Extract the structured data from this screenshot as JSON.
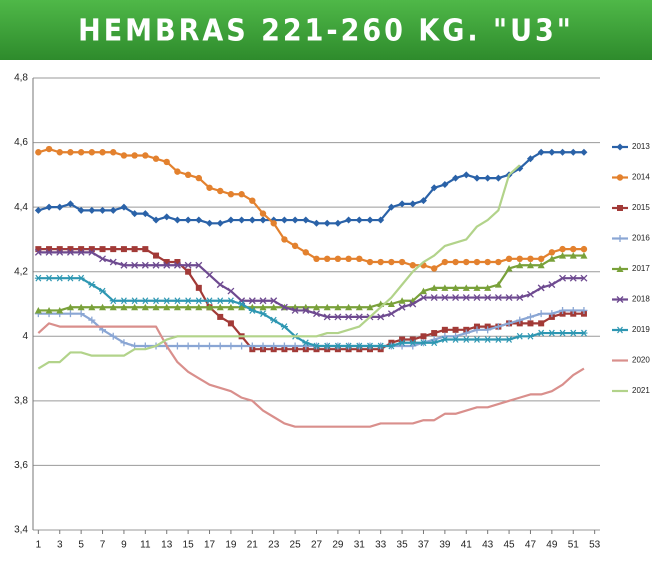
{
  "chart_data": {
    "type": "line",
    "title": "HEMBRAS 221-260 KG. \"U3\"",
    "x": [
      1,
      2,
      3,
      4,
      5,
      6,
      7,
      8,
      9,
      10,
      11,
      12,
      13,
      14,
      15,
      16,
      17,
      18,
      19,
      20,
      21,
      22,
      23,
      24,
      25,
      26,
      27,
      28,
      29,
      30,
      31,
      32,
      33,
      34,
      35,
      36,
      37,
      38,
      39,
      40,
      41,
      42,
      43,
      44,
      45,
      46,
      47,
      48,
      49,
      50,
      51,
      52
    ],
    "xlim": [
      0.5,
      53.5
    ],
    "xticks": [
      1,
      3,
      5,
      7,
      9,
      11,
      13,
      15,
      17,
      19,
      21,
      23,
      25,
      27,
      29,
      31,
      33,
      35,
      37,
      39,
      41,
      43,
      45,
      47,
      49,
      51,
      53
    ],
    "ylim": [
      3.4,
      4.8
    ],
    "yticks": [
      {
        "value": 3.4,
        "label": "3,4"
      },
      {
        "value": 3.6,
        "label": "3,6"
      },
      {
        "value": 3.8,
        "label": "3,8"
      },
      4,
      {
        "value": 4.2,
        "label": "4,2"
      },
      {
        "value": 4.4,
        "label": "4,4"
      },
      {
        "value": 4.6,
        "label": "4,6"
      },
      {
        "value": 4.8,
        "label": "4,8"
      }
    ],
    "grid": true,
    "legend": "right",
    "series": [
      {
        "name": "2013",
        "color": "#2a62a8",
        "marker": "diamond",
        "values": [
          4.39,
          4.4,
          4.4,
          4.41,
          4.39,
          4.39,
          4.39,
          4.39,
          4.4,
          4.38,
          4.38,
          4.36,
          4.37,
          4.36,
          4.36,
          4.36,
          4.35,
          4.35,
          4.36,
          4.36,
          4.36,
          4.36,
          4.36,
          4.36,
          4.36,
          4.36,
          4.35,
          4.35,
          4.35,
          4.36,
          4.36,
          4.36,
          4.36,
          4.4,
          4.41,
          4.41,
          4.42,
          4.46,
          4.47,
          4.49,
          4.5,
          4.49,
          4.49,
          4.49,
          4.5,
          4.52,
          4.55,
          4.57,
          4.57,
          4.57,
          4.57,
          4.57
        ]
      },
      {
        "name": "2014",
        "color": "#e3812e",
        "marker": "circle",
        "values": [
          4.57,
          4.58,
          4.57,
          4.57,
          4.57,
          4.57,
          4.57,
          4.57,
          4.56,
          4.56,
          4.56,
          4.55,
          4.54,
          4.51,
          4.5,
          4.49,
          4.46,
          4.45,
          4.44,
          4.44,
          4.42,
          4.38,
          4.35,
          4.3,
          4.28,
          4.26,
          4.24,
          4.24,
          4.24,
          4.24,
          4.24,
          4.23,
          4.23,
          4.23,
          4.23,
          4.22,
          4.22,
          4.21,
          4.23,
          4.23,
          4.23,
          4.23,
          4.23,
          4.23,
          4.24,
          4.24,
          4.24,
          4.24,
          4.26,
          4.27,
          4.27,
          4.27
        ]
      },
      {
        "name": "2015",
        "color": "#a23a37",
        "marker": "square",
        "values": [
          4.27,
          4.27,
          4.27,
          4.27,
          4.27,
          4.27,
          4.27,
          4.27,
          4.27,
          4.27,
          4.27,
          4.25,
          4.23,
          4.23,
          4.2,
          4.15,
          4.09,
          4.06,
          4.04,
          4.0,
          3.96,
          3.96,
          3.96,
          3.96,
          3.96,
          3.96,
          3.96,
          3.96,
          3.96,
          3.96,
          3.96,
          3.96,
          3.96,
          3.98,
          3.99,
          3.99,
          4.0,
          4.01,
          4.02,
          4.02,
          4.02,
          4.03,
          4.03,
          4.03,
          4.04,
          4.04,
          4.04,
          4.04,
          4.06,
          4.07,
          4.07,
          4.07
        ]
      },
      {
        "name": "2016",
        "color": "#8aa6d4",
        "marker": "plus",
        "values": [
          4.07,
          4.07,
          4.07,
          4.07,
          4.07,
          4.05,
          4.02,
          4.0,
          3.98,
          3.97,
          3.97,
          3.97,
          3.97,
          3.97,
          3.97,
          3.97,
          3.97,
          3.97,
          3.97,
          3.97,
          3.97,
          3.97,
          3.97,
          3.97,
          3.97,
          3.97,
          3.97,
          3.97,
          3.97,
          3.97,
          3.97,
          3.97,
          3.97,
          3.97,
          3.97,
          3.97,
          3.98,
          3.99,
          4.0,
          4.0,
          4.01,
          4.02,
          4.02,
          4.03,
          4.04,
          4.05,
          4.06,
          4.07,
          4.07,
          4.08,
          4.08,
          4.08
        ]
      },
      {
        "name": "2017",
        "color": "#79a13a",
        "marker": "triangle",
        "values": [
          4.08,
          4.08,
          4.08,
          4.09,
          4.09,
          4.09,
          4.09,
          4.09,
          4.09,
          4.09,
          4.09,
          4.09,
          4.09,
          4.09,
          4.09,
          4.09,
          4.09,
          4.09,
          4.09,
          4.09,
          4.09,
          4.09,
          4.09,
          4.09,
          4.09,
          4.09,
          4.09,
          4.09,
          4.09,
          4.09,
          4.09,
          4.09,
          4.1,
          4.1,
          4.11,
          4.11,
          4.14,
          4.15,
          4.15,
          4.15,
          4.15,
          4.15,
          4.15,
          4.16,
          4.21,
          4.22,
          4.22,
          4.22,
          4.24,
          4.25,
          4.25,
          4.25
        ]
      },
      {
        "name": "2018",
        "color": "#6e4a90",
        "marker": "x",
        "values": [
          4.26,
          4.26,
          4.26,
          4.26,
          4.26,
          4.26,
          4.24,
          4.23,
          4.22,
          4.22,
          4.22,
          4.22,
          4.22,
          4.22,
          4.22,
          4.22,
          4.19,
          4.16,
          4.14,
          4.11,
          4.11,
          4.11,
          4.11,
          4.09,
          4.08,
          4.08,
          4.07,
          4.06,
          4.06,
          4.06,
          4.06,
          4.06,
          4.06,
          4.07,
          4.09,
          4.1,
          4.12,
          4.12,
          4.12,
          4.12,
          4.12,
          4.12,
          4.12,
          4.12,
          4.12,
          4.12,
          4.13,
          4.15,
          4.16,
          4.18,
          4.18,
          4.18
        ]
      },
      {
        "name": "2019",
        "color": "#2e97b2",
        "marker": "star",
        "values": [
          4.18,
          4.18,
          4.18,
          4.18,
          4.18,
          4.16,
          4.14,
          4.11,
          4.11,
          4.11,
          4.11,
          4.11,
          4.11,
          4.11,
          4.11,
          4.11,
          4.11,
          4.11,
          4.11,
          4.1,
          4.08,
          4.07,
          4.05,
          4.03,
          4.0,
          3.98,
          3.97,
          3.97,
          3.97,
          3.97,
          3.97,
          3.97,
          3.97,
          3.97,
          3.98,
          3.98,
          3.98,
          3.98,
          3.99,
          3.99,
          3.99,
          3.99,
          3.99,
          3.99,
          3.99,
          4.0,
          4.0,
          4.01,
          4.01,
          4.01,
          4.01,
          4.01
        ]
      },
      {
        "name": "2020",
        "color": "#d98f8c",
        "marker": "none",
        "values": [
          4.01,
          4.04,
          4.03,
          4.03,
          4.03,
          4.03,
          4.03,
          4.03,
          4.03,
          4.03,
          4.03,
          4.03,
          3.97,
          3.92,
          3.89,
          3.87,
          3.85,
          3.84,
          3.83,
          3.81,
          3.8,
          3.77,
          3.75,
          3.73,
          3.72,
          3.72,
          3.72,
          3.72,
          3.72,
          3.72,
          3.72,
          3.72,
          3.73,
          3.73,
          3.73,
          3.73,
          3.74,
          3.74,
          3.76,
          3.76,
          3.77,
          3.78,
          3.78,
          3.79,
          3.8,
          3.81,
          3.82,
          3.82,
          3.83,
          3.85,
          3.88,
          3.9
        ]
      },
      {
        "name": "2021",
        "color": "#b2d38a",
        "marker": "none",
        "values": [
          3.9,
          3.92,
          3.92,
          3.95,
          3.95,
          3.94,
          3.94,
          3.94,
          3.94,
          3.96,
          3.96,
          3.97,
          3.99,
          4.0,
          4.0,
          4.0,
          4.0,
          4.0,
          4.0,
          4.0,
          4.0,
          4.0,
          4.0,
          4.0,
          4.0,
          4.0,
          4.0,
          4.01,
          4.01,
          4.02,
          4.03,
          4.06,
          4.09,
          4.12,
          4.16,
          4.2,
          4.23,
          4.25,
          4.28,
          4.29,
          4.3,
          4.34,
          4.36,
          4.39,
          4.5,
          4.53,
          null,
          null,
          null,
          null,
          null,
          null
        ]
      }
    ]
  }
}
